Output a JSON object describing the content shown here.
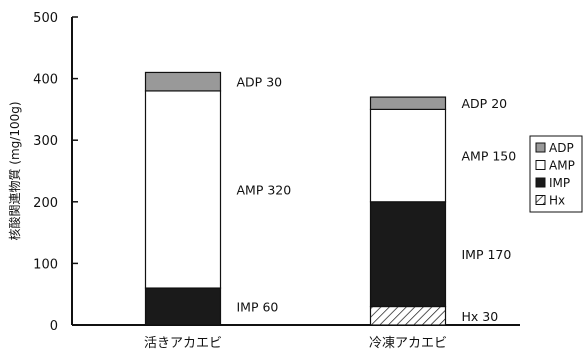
{
  "chart_data": {
    "type": "bar",
    "stacked": true,
    "categories": [
      "活きアカエビ",
      "冷凍アカエビ"
    ],
    "series": [
      {
        "name": "Hx",
        "values": [
          0,
          30
        ],
        "color": "hatch"
      },
      {
        "name": "IMP",
        "values": [
          60,
          170
        ],
        "color": "#1a1a1a"
      },
      {
        "name": "AMP",
        "values": [
          320,
          150
        ],
        "color": "#ffffff"
      },
      {
        "name": "ADP",
        "values": [
          30,
          20
        ],
        "color": "#999999"
      }
    ],
    "annotations": [
      [
        "IMP 60",
        "AMP 320",
        "ADP 30"
      ],
      [
        "Hx 30",
        "IMP 170",
        "AMP 150",
        "ADP 20"
      ]
    ],
    "legend_order": [
      "ADP",
      "AMP",
      "IMP",
      "Hx"
    ],
    "legend_position": "right",
    "title": "",
    "xlabel": "",
    "ylabel": "核酸関連物質 (mg/100g)",
    "ylim": [
      0,
      500
    ],
    "yticks": [
      0,
      100,
      200,
      300,
      400,
      500
    ],
    "grid": false
  }
}
